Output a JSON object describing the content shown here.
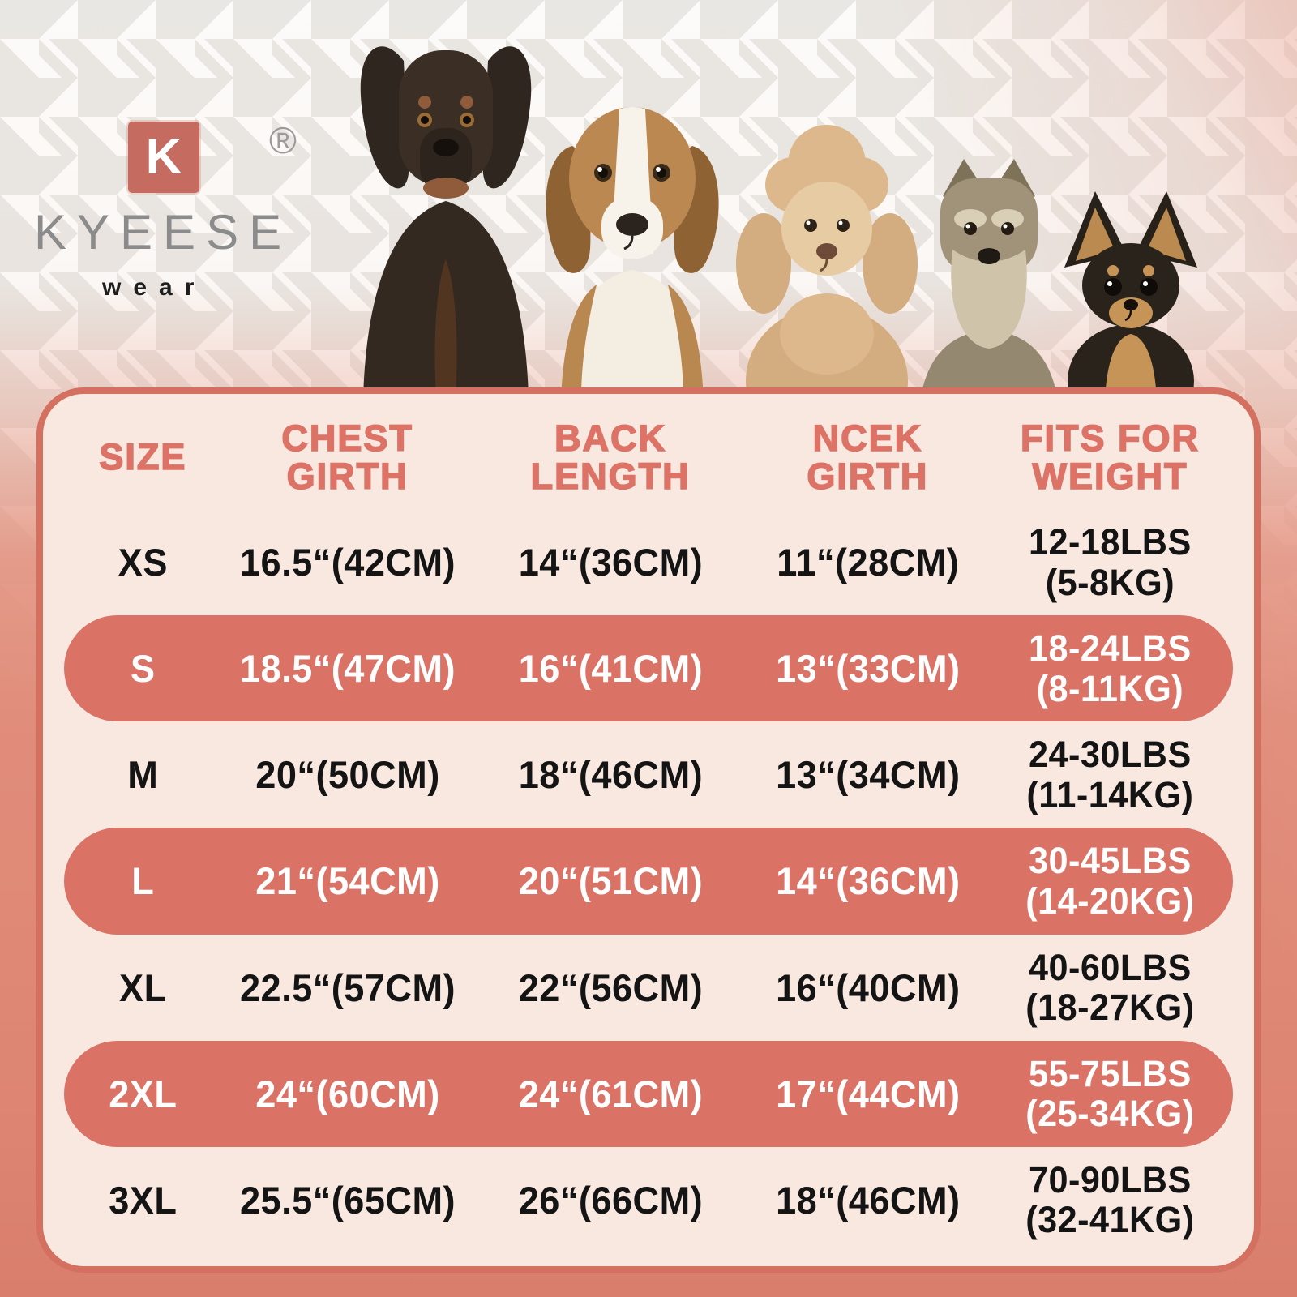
{
  "brand": {
    "logo_letter": "K",
    "registered_mark": "®",
    "name": "KYEESE",
    "tagline": "wear"
  },
  "hero": {
    "dogs": [
      "doberman",
      "beagle",
      "poodle",
      "schnauzer",
      "chihuahua"
    ]
  },
  "colors": {
    "coral_highlight": "#DB7266",
    "coral_border": "#D3705F",
    "header_text": "#DC7366",
    "panel_cream": "#F8E8E0",
    "salmon_background": "#E18D7B",
    "body_text": "#141414",
    "highlight_text": "#FFFFFF",
    "logo_square": "#C56B60",
    "logo_gray": "#8B8B8B"
  },
  "size_table": {
    "headers": [
      {
        "line1": "SIZE",
        "line2": ""
      },
      {
        "line1": "CHEST",
        "line2": "GIRTH"
      },
      {
        "line1": "BACK",
        "line2": "LENGTH"
      },
      {
        "line1": "NCEK",
        "line2": "GIRTH"
      },
      {
        "line1": "FITS FOR",
        "line2": "WEIGHT"
      }
    ],
    "rows": [
      {
        "size": "XS",
        "chest_girth": "16.5“(42CM)",
        "back_length": "14“(36CM)",
        "neck_girth": "11“(28CM)",
        "weight_lbs": "12-18LBS",
        "weight_kg": "(5-8KG)",
        "highlighted": false
      },
      {
        "size": "S",
        "chest_girth": "18.5“(47CM)",
        "back_length": "16“(41CM)",
        "neck_girth": "13“(33CM)",
        "weight_lbs": "18-24LBS",
        "weight_kg": "(8-11KG)",
        "highlighted": true
      },
      {
        "size": "M",
        "chest_girth": "20“(50CM)",
        "back_length": "18“(46CM)",
        "neck_girth": "13“(34CM)",
        "weight_lbs": "24-30LBS",
        "weight_kg": "(11-14KG)",
        "highlighted": false
      },
      {
        "size": "L",
        "chest_girth": "21“(54CM)",
        "back_length": "20“(51CM)",
        "neck_girth": "14“(36CM)",
        "weight_lbs": "30-45LBS",
        "weight_kg": "(14-20KG)",
        "highlighted": true
      },
      {
        "size": "XL",
        "chest_girth": "22.5“(57CM)",
        "back_length": "22“(56CM)",
        "neck_girth": "16“(40CM)",
        "weight_lbs": "40-60LBS",
        "weight_kg": "(18-27KG)",
        "highlighted": false
      },
      {
        "size": "2XL",
        "chest_girth": "24“(60CM)",
        "back_length": "24“(61CM)",
        "neck_girth": "17“(44CM)",
        "weight_lbs": "55-75LBS",
        "weight_kg": "(25-34KG)",
        "highlighted": true
      },
      {
        "size": "3XL",
        "chest_girth": "25.5“(65CM)",
        "back_length": "26“(66CM)",
        "neck_girth": "18“(46CM)",
        "weight_lbs": "70-90LBS",
        "weight_kg": "(32-41KG)",
        "highlighted": false
      }
    ]
  }
}
